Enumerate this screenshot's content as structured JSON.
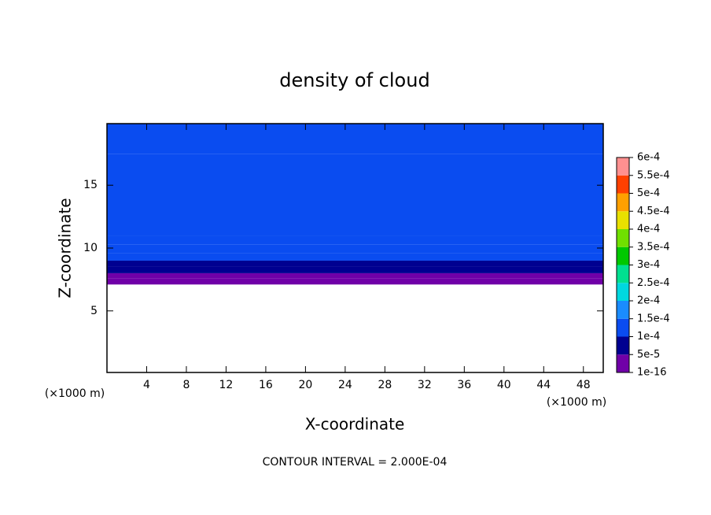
{
  "chart_data": {
    "type": "contour",
    "title": "density of cloud",
    "x_label": "X-coordinate",
    "y_label": "Z-coordinate",
    "x_unit": "(×1000 m)",
    "y_unit": "(×1000 m)",
    "note": "CONTOUR INTERVAL = 2.000E-04",
    "xlim": [
      0,
      50
    ],
    "xticks": [
      4,
      8,
      12,
      16,
      20,
      24,
      28,
      32,
      36,
      40,
      44,
      48
    ],
    "ylim": [
      0.1,
      19.9
    ],
    "yticks": [
      5,
      10,
      15
    ],
    "profile": {
      "z": [
        7.1,
        7.6,
        8.0,
        8.5,
        9.0,
        9.6,
        10.3,
        11.0,
        17.5
      ],
      "values": [
        1e-05,
        3e-05,
        6e-05,
        8e-05,
        0.000105,
        0.000115,
        0.000125,
        0.000135,
        0.00013
      ]
    },
    "colorbar": {
      "ticks": [
        {
          "value": 1e-16,
          "label": "1e-16"
        },
        {
          "value": 5e-05,
          "label": "5e-5"
        },
        {
          "value": 0.0001,
          "label": "1e-4"
        },
        {
          "value": 0.00015,
          "label": "1.5e-4"
        },
        {
          "value": 0.0002,
          "label": "2e-4"
        },
        {
          "value": 0.00025,
          "label": "2.5e-4"
        },
        {
          "value": 0.0003,
          "label": "3e-4"
        },
        {
          "value": 0.00035,
          "label": "3.5e-4"
        },
        {
          "value": 0.0004,
          "label": "4e-4"
        },
        {
          "value": 0.00045,
          "label": "4.5e-4"
        },
        {
          "value": 0.0005,
          "label": "5e-4"
        },
        {
          "value": 0.00055,
          "label": "5.5e-4"
        },
        {
          "value": 0.0006,
          "label": "6e-4"
        }
      ],
      "colors": [
        "#7000a8",
        "#000090",
        "#0a4cf0",
        "#1a8cff",
        "#00d8e0",
        "#00e090",
        "#00c800",
        "#70e000",
        "#e8e000",
        "#ffa000",
        "#ff4000",
        "#ff9090"
      ]
    }
  }
}
